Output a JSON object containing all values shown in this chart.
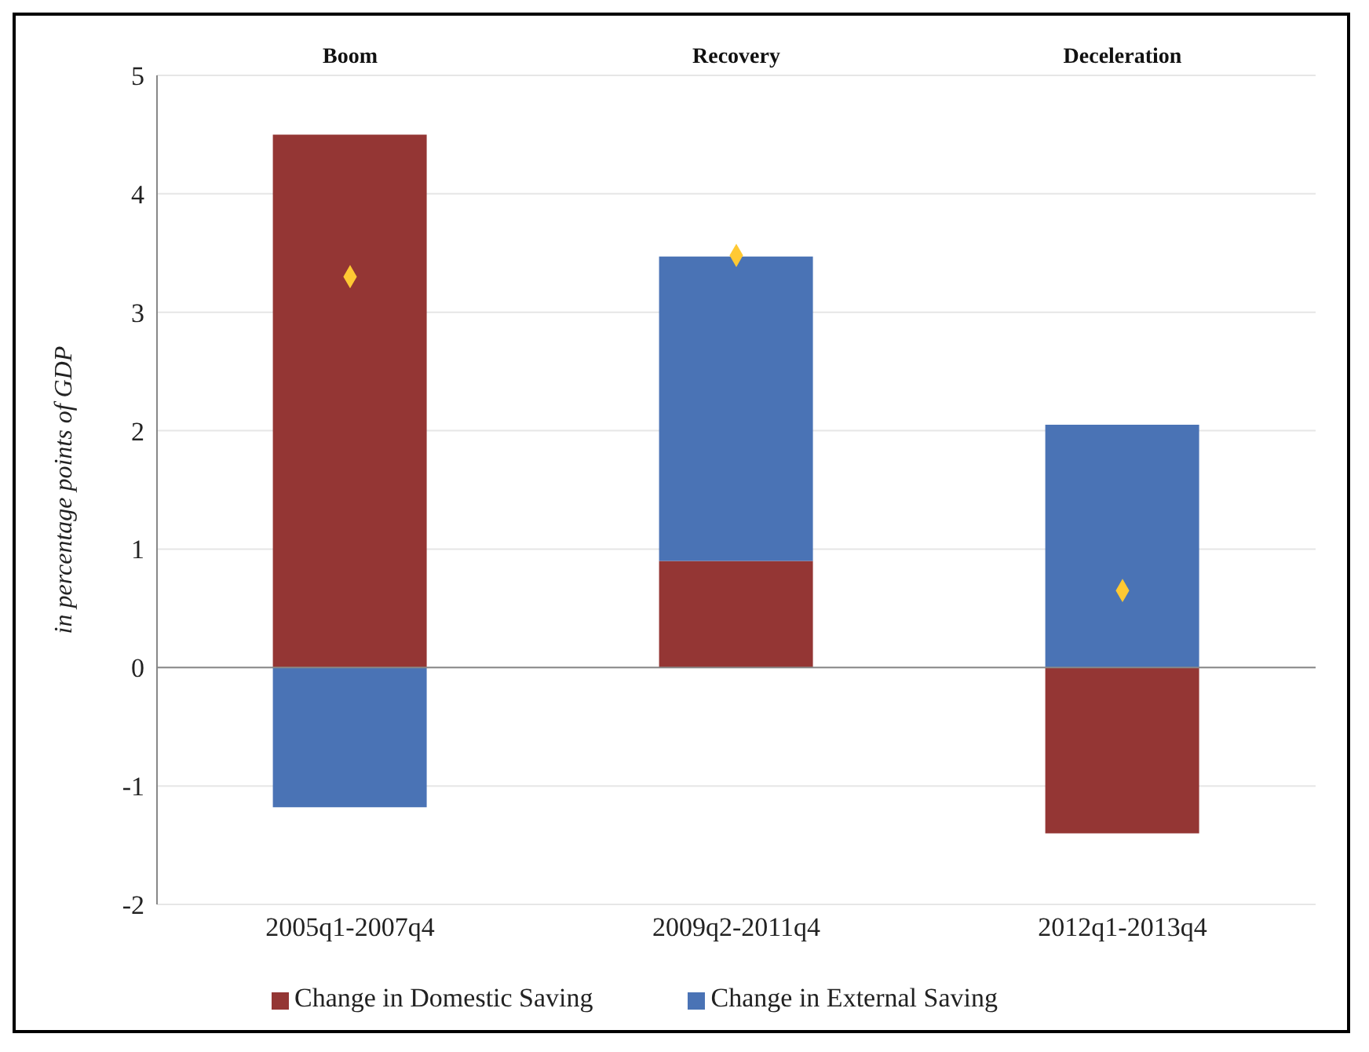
{
  "chart_data": {
    "type": "bar",
    "stacked": true,
    "ylabel": "in percentage points of GDP",
    "categories": [
      "2005q1-2007q4",
      "2009q2-2011q4",
      "2012q1-2013q4"
    ],
    "series": [
      {
        "name": "Change in Domestic Saving",
        "color": "#943634",
        "values": [
          4.5,
          0.9,
          -1.4
        ]
      },
      {
        "name": "Change in External Saving",
        "color": "#4a73b5",
        "values": [
          -1.18,
          2.57,
          2.05
        ]
      },
      {
        "type": "scatter",
        "color": "#ffc933",
        "marker": "diamond",
        "values": [
          3.3,
          3.48,
          0.65
        ]
      }
    ],
    "annotations": [
      "Boom",
      "Recovery",
      "Deceleration"
    ],
    "ref_lines": [
      {
        "axis": "y",
        "value": 0,
        "color": "#888888"
      }
    ],
    "ylim": [
      -2,
      5
    ],
    "yticks": [
      -2,
      -1,
      0,
      1,
      2,
      3,
      4,
      5
    ],
    "grid": "y",
    "legend": "bottom"
  }
}
